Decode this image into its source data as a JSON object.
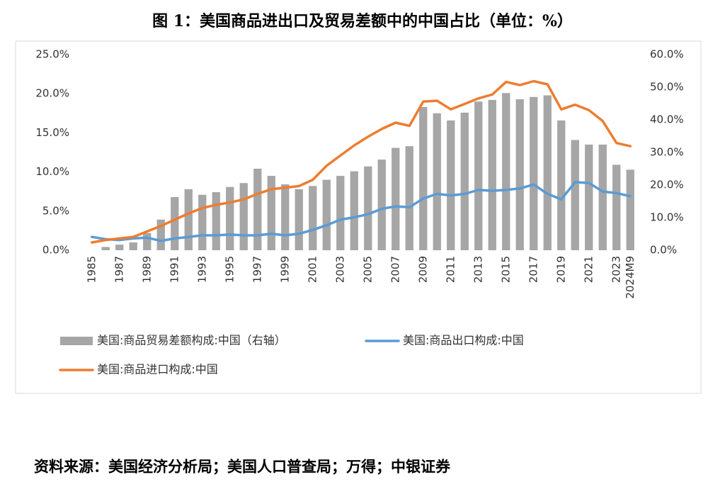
{
  "chart_data": {
    "type": "combo",
    "title": "图 1：美国商品进出口及贸易差额中的中国占比（单位：%）",
    "source": "资料来源：美国经济分析局；美国人口普查局；万得；中银证券",
    "categories": [
      "1985",
      null,
      "1987",
      null,
      "1989",
      null,
      "1991",
      null,
      "1993",
      null,
      "1995",
      null,
      "1997",
      null,
      "1999",
      null,
      "2001",
      null,
      "2003",
      null,
      "2005",
      null,
      "2007",
      null,
      "2009",
      null,
      "2011",
      null,
      "2013",
      null,
      "2015",
      null,
      "2017",
      null,
      "2019",
      null,
      "2021",
      null,
      "2023",
      "2024M9"
    ],
    "ylim": [
      0,
      25
    ],
    "yticks": [
      {
        "value": 0,
        "label": "0.0%"
      },
      {
        "value": 5,
        "label": "5.0%"
      },
      {
        "value": 10,
        "label": "10.0%"
      },
      {
        "value": 15,
        "label": "15.0%"
      },
      {
        "value": 20,
        "label": "20.0%"
      },
      {
        "value": 25,
        "label": "25.0%"
      }
    ],
    "y2lim": [
      0,
      60
    ],
    "y2ticks": [
      {
        "value": 0,
        "label": "0.0%"
      },
      {
        "value": 10,
        "label": "10.0%"
      },
      {
        "value": 20,
        "label": "20.0%"
      },
      {
        "value": 30,
        "label": "30.0%"
      },
      {
        "value": 40,
        "label": "40.0%"
      },
      {
        "value": 50,
        "label": "50.0%"
      },
      {
        "value": 60,
        "label": "60.0%"
      }
    ],
    "grid": false,
    "legend": "bottom",
    "series": [
      {
        "name": "美国:商品贸易差额构成:中国（右轴）",
        "type": "bar",
        "axis": "y2",
        "color": "#a6a6a6",
        "values": [
          0,
          1.0,
          1.7,
          2.4,
          5.3,
          9.4,
          16.3,
          18.7,
          17.0,
          17.8,
          19.4,
          20.6,
          25.0,
          22.8,
          20.2,
          18.7,
          19.7,
          21.6,
          22.8,
          24.2,
          25.7,
          27.8,
          31.4,
          31.9,
          43.9,
          42.0,
          39.8,
          42.2,
          45.6,
          46.1,
          48.2,
          46.3,
          47.0,
          47.5,
          39.8,
          33.8,
          32.4,
          32.4,
          26.2,
          24.7
        ]
      },
      {
        "name": "美国:商品出口构成:中国",
        "type": "line",
        "color": "#5b9bd5",
        "values": [
          1.7,
          1.4,
          1.3,
          1.5,
          1.6,
          1.2,
          1.5,
          1.7,
          1.9,
          1.9,
          2.0,
          1.9,
          1.9,
          2.1,
          1.9,
          2.1,
          2.6,
          3.2,
          3.9,
          4.2,
          4.6,
          5.3,
          5.6,
          5.5,
          6.6,
          7.2,
          7.0,
          7.2,
          7.7,
          7.6,
          7.7,
          7.9,
          8.4,
          7.2,
          6.5,
          8.7,
          8.6,
          7.5,
          7.3,
          6.9
        ]
      },
      {
        "name": "美国:商品进口构成:中国",
        "type": "line",
        "color": "#ed7d31",
        "values": [
          1.0,
          1.3,
          1.5,
          1.7,
          2.4,
          3.1,
          3.9,
          4.7,
          5.4,
          5.8,
          6.1,
          6.5,
          7.2,
          7.8,
          8.0,
          8.2,
          9.0,
          10.8,
          12.1,
          13.4,
          14.5,
          15.5,
          16.3,
          15.9,
          19.0,
          19.1,
          18.0,
          18.7,
          19.4,
          19.9,
          21.5,
          21.1,
          21.6,
          21.2,
          18.0,
          18.6,
          17.9,
          16.5,
          13.7,
          13.3
        ]
      }
    ]
  }
}
